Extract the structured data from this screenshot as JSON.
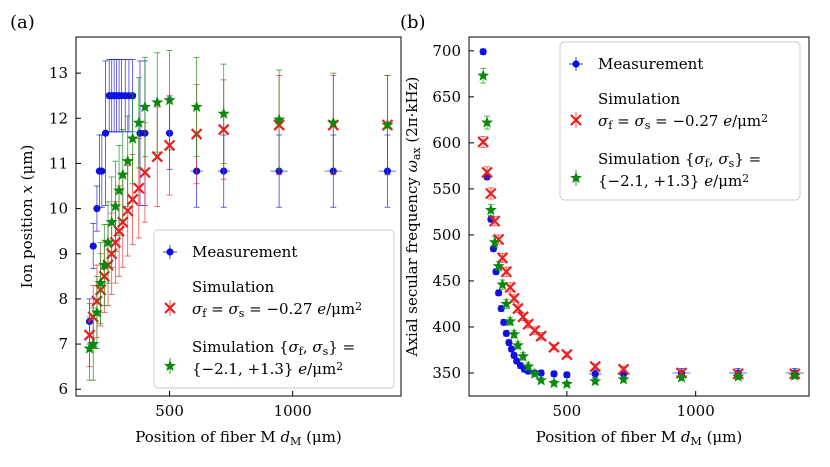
{
  "chart_data": [
    {
      "type": "scatter",
      "panel": "(a)",
      "xlabel": "Position of fiber M d_M (μm)",
      "ylabel": "Ion position x (μm)",
      "xlim": [
        120,
        1440
      ],
      "ylim": [
        5.85,
        13.8
      ],
      "xticks": [
        500,
        1000
      ],
      "yticks": [
        6,
        7,
        8,
        9,
        10,
        11,
        12,
        13
      ],
      "legend_position": "lower-right",
      "series": [
        {
          "name": "Measurement",
          "color": "#1010e0",
          "marker": "circle",
          "x": [
            175,
            190,
            205,
            215,
            225,
            240,
            255,
            265,
            275,
            285,
            295,
            305,
            320,
            335,
            350,
            380,
            400,
            500,
            610,
            720,
            945,
            1165,
            1385
          ],
          "y": [
            7.5,
            9.17,
            10.0,
            10.83,
            10.83,
            11.67,
            12.5,
            12.5,
            12.5,
            12.5,
            12.5,
            12.5,
            12.5,
            12.5,
            12.5,
            11.67,
            11.67,
            11.67,
            10.83,
            10.83,
            10.83,
            10.83,
            10.83
          ],
          "yerr": [
            0.5,
            0.5,
            0.5,
            0.8,
            0.8,
            1.6,
            0.8,
            0.8,
            0.8,
            0.8,
            0.8,
            0.8,
            0.8,
            0.8,
            0.8,
            1.6,
            1.6,
            0.8,
            0.8,
            0.8,
            0.8,
            0.8,
            0.8
          ],
          "xerr": [
            0,
            0,
            0,
            0,
            0,
            0,
            0,
            0,
            0,
            0,
            0,
            0,
            0,
            0,
            0,
            0,
            0,
            0,
            25,
            25,
            35,
            35,
            35
          ]
        },
        {
          "name": "Simulation",
          "label_line2": "σf = σs = −0.27 e/μm²",
          "color": "#e82020",
          "marker": "x",
          "x": [
            175,
            190,
            205,
            220,
            235,
            250,
            265,
            280,
            295,
            310,
            330,
            350,
            375,
            400,
            450,
            500,
            610,
            720,
            945,
            1165,
            1385
          ],
          "y": [
            7.2,
            7.6,
            7.95,
            8.2,
            8.5,
            8.75,
            9.0,
            9.25,
            9.5,
            9.7,
            9.95,
            10.2,
            10.45,
            10.8,
            11.15,
            11.4,
            11.65,
            11.75,
            11.85,
            11.85,
            11.85
          ],
          "yerr": [
            0.7,
            0.7,
            0.8,
            0.8,
            0.8,
            0.9,
            0.9,
            0.9,
            1.0,
            1.0,
            1.0,
            1.0,
            1.1,
            1.1,
            1.1,
            1.1,
            1.1,
            1.1,
            1.1,
            1.1,
            1.1
          ]
        },
        {
          "name": "Simulation",
          "label_line2": "{σf, σs} =",
          "label_line3": "{−2.1, +1.3} e/μm²",
          "color": "#0a8a0a",
          "marker": "star",
          "x": [
            175,
            190,
            205,
            220,
            235,
            250,
            265,
            280,
            295,
            310,
            330,
            350,
            375,
            400,
            450,
            500,
            610,
            720,
            945,
            1165,
            1385
          ],
          "y": [
            6.9,
            7.0,
            7.7,
            8.35,
            8.75,
            9.25,
            9.7,
            10.05,
            10.4,
            10.75,
            11.05,
            11.55,
            11.9,
            12.25,
            12.35,
            12.4,
            12.25,
            12.1,
            11.97,
            11.9,
            11.85
          ],
          "yerr": [
            0.7,
            0.8,
            0.8,
            0.9,
            0.9,
            0.9,
            1.0,
            1.0,
            1.0,
            1.0,
            1.0,
            1.0,
            1.0,
            1.1,
            1.1,
            1.1,
            1.1,
            1.1,
            1.1,
            1.1,
            1.1
          ]
        }
      ]
    },
    {
      "type": "scatter",
      "panel": "(b)",
      "xlabel": "Position of fiber M d_M (μm)",
      "ylabel": "Axial secular frequency ω_ax (2π·kHz)",
      "xlim": [
        120,
        1440
      ],
      "ylim": [
        325,
        715
      ],
      "xticks": [
        500,
        1000
      ],
      "yticks": [
        350,
        400,
        450,
        500,
        550,
        600,
        650,
        700
      ],
      "legend_position": "upper-right",
      "series": [
        {
          "name": "Measurement",
          "color": "#1010e0",
          "marker": "circle",
          "x": [
            175,
            190,
            205,
            215,
            225,
            235,
            245,
            255,
            265,
            275,
            285,
            295,
            305,
            320,
            335,
            350,
            375,
            400,
            450,
            500,
            610,
            720,
            945,
            1165,
            1385
          ],
          "y": [
            699,
            563,
            517,
            485,
            460,
            437,
            420,
            405,
            393,
            383,
            376,
            369,
            363,
            358,
            354,
            352,
            350,
            350,
            349,
            348,
            349,
            349,
            350,
            350,
            350
          ],
          "yerr": [
            3,
            3,
            3,
            3,
            3,
            3,
            3,
            3,
            3,
            3,
            3,
            3,
            3,
            3,
            3,
            3,
            3,
            3,
            3,
            3,
            4,
            4,
            5,
            5,
            5
          ],
          "xerr": [
            0,
            0,
            0,
            0,
            0,
            0,
            0,
            0,
            0,
            0,
            0,
            0,
            0,
            0,
            0,
            0,
            0,
            0,
            0,
            0,
            25,
            25,
            35,
            35,
            35
          ]
        },
        {
          "name": "Simulation",
          "label_line2": "σf = σs = −0.27 e/μm²",
          "color": "#e82020",
          "marker": "x",
          "x": [
            175,
            190,
            205,
            220,
            235,
            250,
            265,
            280,
            295,
            310,
            330,
            350,
            375,
            400,
            450,
            500,
            610,
            720,
            945,
            1165,
            1385
          ],
          "y": [
            601,
            568,
            545,
            515,
            495,
            475,
            460,
            443,
            431,
            420,
            411,
            403,
            396,
            390,
            378,
            370,
            357,
            354,
            350,
            349,
            349
          ],
          "yerr": [
            6,
            6,
            6,
            5,
            5,
            5,
            5,
            5,
            4,
            4,
            4,
            4,
            4,
            4,
            3,
            3,
            3,
            3,
            3,
            3,
            3
          ]
        },
        {
          "name": "Simulation",
          "label_line2": "{σf, σs} =",
          "label_line3": "{−2.1, +1.3} e/μm²",
          "color": "#0a8a0a",
          "marker": "star",
          "x": [
            175,
            190,
            205,
            220,
            235,
            250,
            265,
            280,
            295,
            310,
            330,
            350,
            375,
            400,
            450,
            500,
            610,
            720,
            945,
            1165,
            1385
          ],
          "y": [
            673,
            622,
            527,
            492,
            466,
            446,
            425,
            406,
            392,
            380,
            368,
            357,
            349,
            342,
            339,
            338,
            341,
            343,
            345,
            346,
            347
          ],
          "yerr": [
            8,
            7,
            6,
            6,
            5,
            5,
            5,
            4,
            4,
            4,
            4,
            4,
            3,
            3,
            3,
            3,
            3,
            3,
            3,
            3,
            3
          ]
        }
      ]
    }
  ]
}
